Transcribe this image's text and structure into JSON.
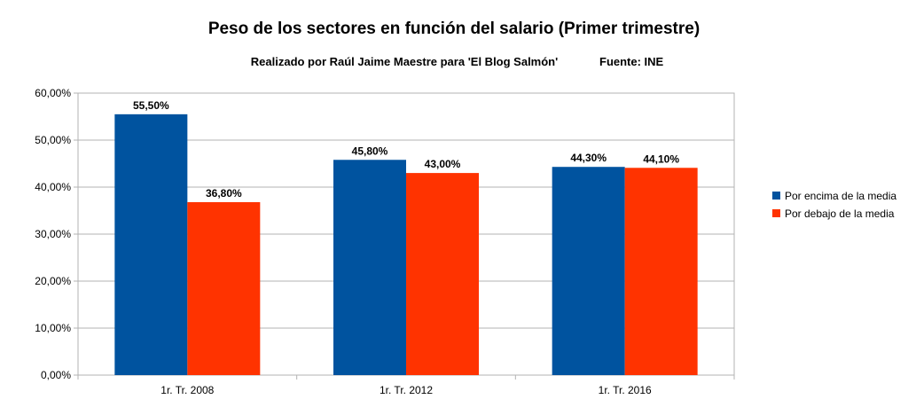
{
  "chart_data": {
    "type": "bar",
    "title": "Peso de los sectores en función del salario (Primer trimestre)",
    "subtitle": "Realizado por Raúl Jaime Maestre para 'El Blog Salmón'",
    "source": "Fuente: INE",
    "categories": [
      "1r. Tr. 2008",
      "1r. Tr. 2012",
      "1r. Tr. 2016"
    ],
    "series": [
      {
        "name": "Por encima de la media",
        "values": [
          55.5,
          45.8,
          44.3
        ],
        "labels": [
          "55,50%",
          "45,80%",
          "44,30%"
        ],
        "color": "#00539f"
      },
      {
        "name": "Por debajo de la media",
        "values": [
          36.8,
          43.0,
          44.1
        ],
        "labels": [
          "36,80%",
          "43,00%",
          "44,10%"
        ],
        "color": "#ff3300"
      }
    ],
    "ylim": [
      0,
      60
    ],
    "yticks": [
      0,
      10,
      20,
      30,
      40,
      50,
      60
    ],
    "ytick_labels": [
      "0,00%",
      "10,00%",
      "20,00%",
      "30,00%",
      "40,00%",
      "50,00%",
      "60,00%"
    ],
    "grid": true,
    "legend_position": "right"
  }
}
